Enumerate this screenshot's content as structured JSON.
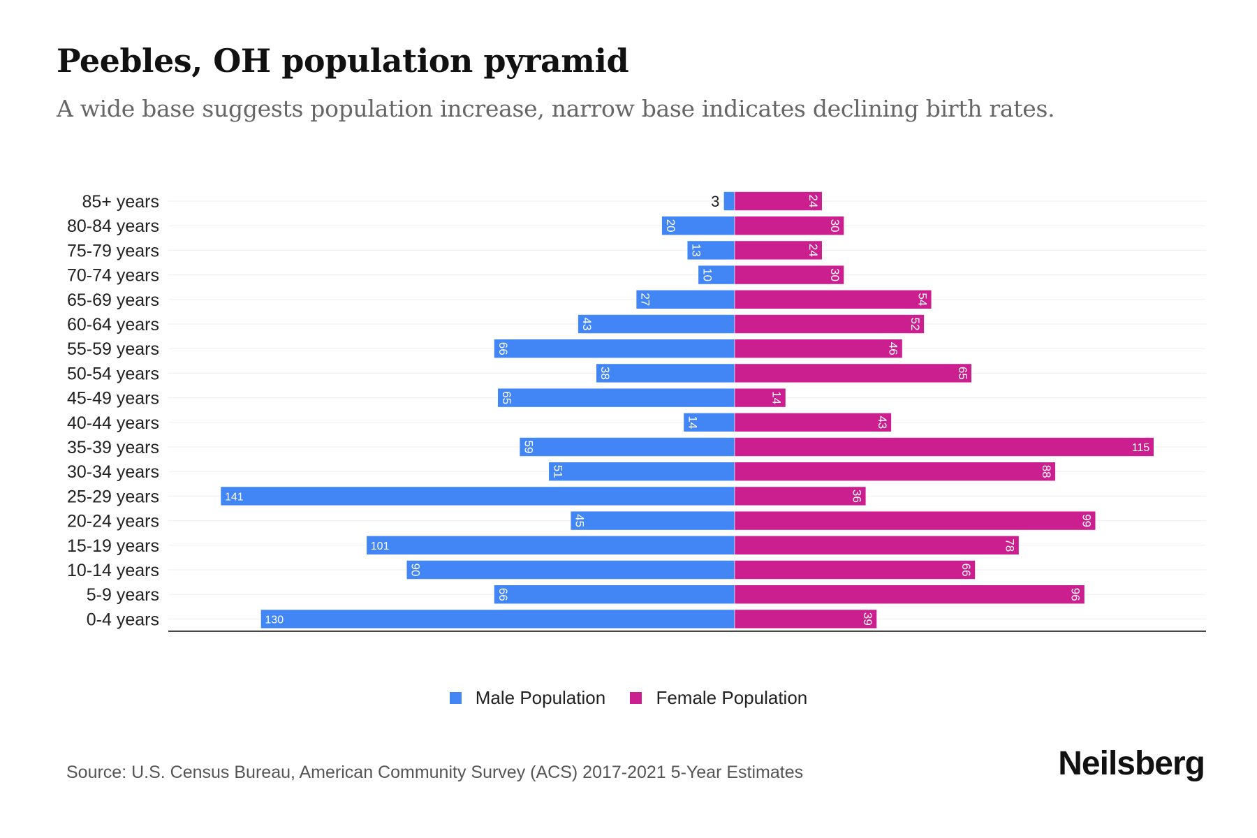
{
  "chart_data": {
    "type": "bar",
    "orientation": "horizontal-pyramid",
    "title": "Peebles, OH population pyramid",
    "subtitle": "A wide base suggests population increase, narrow base indicates declining birth rates.",
    "categories": [
      "85+ years",
      "80-84 years",
      "75-79 years",
      "70-74 years",
      "65-69 years",
      "60-64 years",
      "55-59 years",
      "50-54 years",
      "45-49 years",
      "40-44 years",
      "35-39 years",
      "30-34 years",
      "25-29 years",
      "20-24 years",
      "15-19 years",
      "10-14 years",
      "5-9 years",
      "0-4 years"
    ],
    "series": [
      {
        "name": "Male Population",
        "color": "#4285f4",
        "values": [
          3,
          20,
          13,
          10,
          27,
          43,
          66,
          38,
          65,
          14,
          59,
          51,
          141,
          45,
          101,
          90,
          66,
          130
        ]
      },
      {
        "name": "Female Population",
        "color": "#cc1f8f",
        "values": [
          24,
          30,
          24,
          30,
          54,
          52,
          46,
          65,
          14,
          43,
          115,
          88,
          36,
          99,
          78,
          66,
          96,
          39
        ]
      }
    ],
    "xlim": [
      -155,
      180
    ],
    "grid": true,
    "legend_position": "bottom"
  },
  "source": "Source: U.S. Census Bureau, American Community Survey (ACS) 2017-2021 5-Year Estimates",
  "brand": "Neilsberg"
}
